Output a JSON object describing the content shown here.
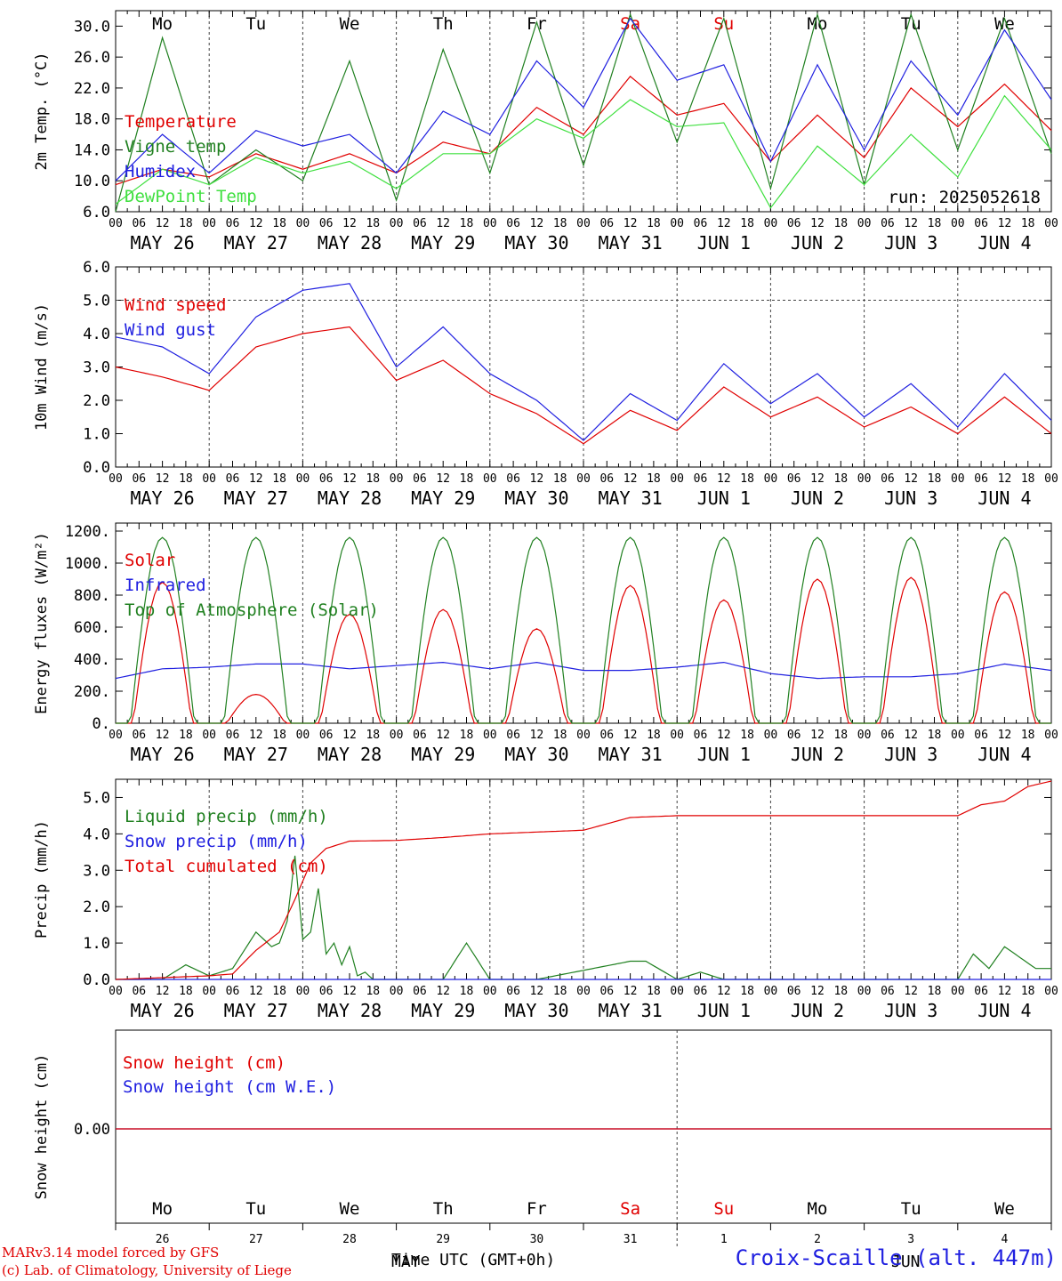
{
  "run_label": "run: 2025052618",
  "footer": {
    "model": "MARv3.14 model forced by GFS",
    "lab": "(c) Lab. of Climatology, University of Liege",
    "xlabel": "Time UTC (GMT+0h)",
    "station": "Croix-Scaille (alt. 447m)"
  },
  "colors": {
    "red": "#e00000",
    "green": "#208020",
    "blue": "#2020e0",
    "lightgreen": "#40e040",
    "grey": "#555555"
  },
  "chart_data": [
    {
      "type": "line",
      "ylabel": "2m Temp. (°C)",
      "ylim": [
        6,
        32
      ],
      "yticks": [
        "6.0",
        "10.0",
        "14.0",
        "18.0",
        "22.0",
        "26.0",
        "30.0"
      ],
      "x_days": [
        "MAY 26",
        "MAY 27",
        "MAY 28",
        "MAY 29",
        "MAY 30",
        "MAY 31",
        "JUN  1",
        "JUN  2",
        "JUN  3",
        "JUN  4"
      ],
      "hour_ticks": [
        "00",
        "06",
        "12",
        "18"
      ],
      "weekdays": [
        "Mo",
        "Tu",
        "We",
        "Th",
        "Fr",
        "Sa",
        "Su",
        "Mo",
        "Tu",
        "We"
      ],
      "weekend_days": [
        5,
        6
      ],
      "x_hours": [
        0,
        12,
        24,
        36,
        48,
        60,
        72,
        84,
        96,
        108,
        120,
        132,
        144,
        156,
        168,
        180,
        192,
        204,
        216,
        228,
        240
      ],
      "series": [
        {
          "name": "Temperature",
          "color": "#e00000",
          "values": [
            9.5,
            11.5,
            10.5,
            13.5,
            11.5,
            13.5,
            11.0,
            15.0,
            13.5,
            19.5,
            16.0,
            23.5,
            18.5,
            20.0,
            12.5,
            18.5,
            13.0,
            22.0,
            17.0,
            22.5,
            16.5
          ]
        },
        {
          "name": "Vigne temp",
          "color": "#208020",
          "values": [
            6.0,
            28.5,
            9.5,
            14.0,
            10.0,
            25.5,
            7.5,
            27.0,
            11.0,
            30.5,
            12.0,
            31.5,
            15.0,
            31.0,
            9.0,
            31.5,
            9.5,
            31.5,
            14.0,
            31.0,
            13.5
          ]
        },
        {
          "name": "Humidex",
          "color": "#2020e0",
          "values": [
            10.0,
            16.0,
            11.0,
            16.5,
            14.5,
            16.0,
            11.0,
            19.0,
            16.0,
            25.5,
            19.5,
            31.0,
            23.0,
            25.0,
            12.5,
            25.0,
            14.0,
            25.5,
            18.5,
            29.5,
            20.5
          ]
        },
        {
          "name": "DewPoint Temp",
          "color": "#40e040",
          "values": [
            7.0,
            11.5,
            9.5,
            13.0,
            11.0,
            12.5,
            9.0,
            13.5,
            13.5,
            18.0,
            15.5,
            20.5,
            17.0,
            17.5,
            6.5,
            14.5,
            9.5,
            16.0,
            10.5,
            21.0,
            14.0
          ]
        }
      ]
    },
    {
      "type": "line",
      "ylabel": "10m Wind (m/s)",
      "ylim": [
        0,
        6
      ],
      "yticks": [
        "0.0",
        "1.0",
        "2.0",
        "3.0",
        "4.0",
        "5.0",
        "6.0"
      ],
      "reference_line": 5.0,
      "x_days": [
        "MAY 26",
        "MAY 27",
        "MAY 28",
        "MAY 29",
        "MAY 30",
        "MAY 31",
        "JUN  1",
        "JUN  2",
        "JUN  3",
        "JUN  4"
      ],
      "hour_ticks": [
        "00",
        "06",
        "12",
        "18"
      ],
      "x_hours": [
        0,
        12,
        24,
        36,
        48,
        60,
        72,
        84,
        96,
        108,
        120,
        132,
        144,
        156,
        168,
        180,
        192,
        204,
        216,
        228,
        240
      ],
      "series": [
        {
          "name": "Wind speed",
          "color": "#e00000",
          "values": [
            3.0,
            2.7,
            2.3,
            3.6,
            4.0,
            4.2,
            2.6,
            3.2,
            2.2,
            1.6,
            0.7,
            1.7,
            1.1,
            2.4,
            1.5,
            2.1,
            1.2,
            1.8,
            1.0,
            2.1,
            1.0
          ]
        },
        {
          "name": "Wind gust",
          "color": "#2020e0",
          "values": [
            3.9,
            3.6,
            2.8,
            4.5,
            5.3,
            5.5,
            3.0,
            4.2,
            2.8,
            2.0,
            0.8,
            2.2,
            1.4,
            3.1,
            1.9,
            2.8,
            1.5,
            2.5,
            1.2,
            2.8,
            1.4
          ]
        }
      ]
    },
    {
      "type": "line",
      "ylabel": "Energy fluxes (W/m²)",
      "ylim": [
        0,
        1250
      ],
      "yticks": [
        "0.",
        "200.",
        "400.",
        "600.",
        "800.",
        "1000.",
        "1200."
      ],
      "x_days": [
        "MAY 26",
        "MAY 27",
        "MAY 28",
        "MAY 29",
        "MAY 30",
        "MAY 31",
        "JUN  1",
        "JUN  2",
        "JUN  3",
        "JUN  4"
      ],
      "hour_ticks": [
        "00",
        "06",
        "12",
        "18"
      ],
      "series": [
        {
          "name": "Solar",
          "color": "#e00000",
          "daily_peaks": [
            880,
            180,
            680,
            710,
            590,
            860,
            770,
            900,
            910,
            820
          ]
        },
        {
          "name": "Infrared",
          "color": "#2020e0",
          "x_hours": [
            0,
            12,
            24,
            36,
            48,
            60,
            72,
            84,
            96,
            108,
            120,
            132,
            144,
            156,
            168,
            180,
            192,
            204,
            216,
            228,
            240
          ],
          "values": [
            280,
            340,
            350,
            370,
            370,
            340,
            360,
            380,
            340,
            380,
            330,
            330,
            350,
            380,
            310,
            280,
            290,
            290,
            310,
            370,
            330
          ]
        },
        {
          "name": "Top of Atmosphere (Solar)",
          "color": "#208020",
          "daily_peaks": [
            1160,
            1160,
            1160,
            1160,
            1160,
            1160,
            1160,
            1160,
            1160,
            1160
          ]
        }
      ]
    },
    {
      "type": "line",
      "ylabel": "Precip (mm/h)",
      "ylim": [
        0,
        5.5
      ],
      "yticks": [
        "0.0",
        "1.0",
        "2.0",
        "3.0",
        "4.0",
        "5.0"
      ],
      "x_days": [
        "MAY 26",
        "MAY 27",
        "MAY 28",
        "MAY 29",
        "MAY 30",
        "MAY 31",
        "JUN  1",
        "JUN  2",
        "JUN  3",
        "JUN  4"
      ],
      "hour_ticks": [
        "00",
        "06",
        "12",
        "18"
      ],
      "series": [
        {
          "name": "Liquid precip (mm/h)",
          "color": "#208020",
          "x_hours": [
            0,
            12,
            18,
            24,
            30,
            36,
            40,
            42,
            44,
            46,
            48,
            50,
            52,
            54,
            56,
            58,
            60,
            62,
            64,
            66,
            72,
            84,
            90,
            96,
            108,
            132,
            136,
            144,
            150,
            156,
            168,
            192,
            216,
            220,
            224,
            228,
            232,
            236,
            240
          ],
          "values": [
            0,
            0,
            0.4,
            0.1,
            0.3,
            1.3,
            0.9,
            1.0,
            1.6,
            3.4,
            1.1,
            1.3,
            2.5,
            0.7,
            1.0,
            0.4,
            0.9,
            0.1,
            0.2,
            0,
            0,
            0,
            1.0,
            0,
            0,
            0.5,
            0.5,
            0,
            0.2,
            0,
            0,
            0,
            0,
            0.7,
            0.3,
            0.9,
            0.6,
            0.3,
            0.3
          ]
        },
        {
          "name": "Snow precip (mm/h)",
          "color": "#2020e0",
          "x_hours": [
            0,
            240
          ],
          "values": [
            0,
            0
          ]
        },
        {
          "name": "Total cumulated (cm)",
          "color": "#e00000",
          "x_hours": [
            0,
            24,
            30,
            36,
            42,
            46,
            50,
            54,
            60,
            72,
            84,
            96,
            108,
            120,
            132,
            144,
            168,
            192,
            216,
            222,
            228,
            234,
            240
          ],
          "values": [
            0,
            0.1,
            0.15,
            0.8,
            1.3,
            2.2,
            3.2,
            3.6,
            3.8,
            3.82,
            3.9,
            4.0,
            4.05,
            4.1,
            4.45,
            4.5,
            4.5,
            4.5,
            4.5,
            4.8,
            4.9,
            5.3,
            5.45
          ]
        }
      ]
    },
    {
      "type": "line",
      "ylabel": "Snow height (cm)",
      "yticks": [
        "0.00"
      ],
      "weekdays": [
        "Mo",
        "Tu",
        "We",
        "Th",
        "Fr",
        "Sa",
        "Su",
        "Mo",
        "Tu",
        "We"
      ],
      "weekend_days": [
        5,
        6
      ],
      "day_numbers": [
        "26",
        "27",
        "28",
        "29",
        "30",
        "31",
        "1",
        "2",
        "3",
        "4"
      ],
      "month_labels": [
        "MAY",
        "JUN"
      ],
      "series": [
        {
          "name": "Snow height (cm)",
          "color": "#e00000",
          "x_hours": [
            0,
            240
          ],
          "values": [
            0,
            0
          ]
        },
        {
          "name": "Snow height (cm W.E.)",
          "color": "#2020e0",
          "x_hours": [
            0,
            240
          ],
          "values": [
            0,
            0
          ]
        }
      ]
    }
  ]
}
